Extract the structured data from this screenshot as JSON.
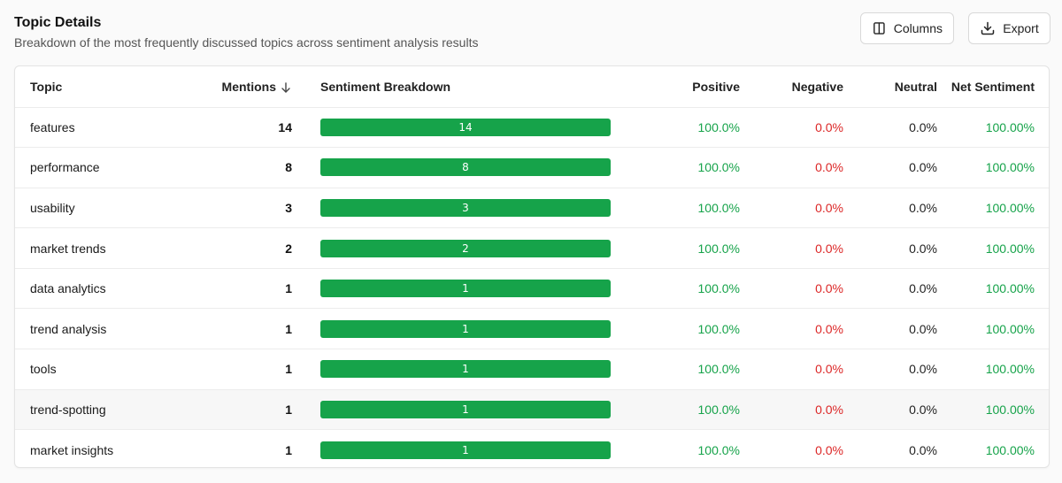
{
  "header": {
    "title": "Topic Details",
    "subtitle": "Breakdown of the most frequently discussed topics across sentiment analysis results"
  },
  "toolbar": {
    "columns_label": "Columns",
    "export_label": "Export"
  },
  "table": {
    "columns": {
      "topic": "Topic",
      "mentions": "Mentions",
      "breakdown": "Sentiment Breakdown",
      "positive": "Positive",
      "negative": "Negative",
      "neutral": "Neutral",
      "net": "Net Sentiment"
    },
    "rows": [
      {
        "topic": "features",
        "mentions": "14",
        "bar": "14",
        "positive": "100.0%",
        "negative": "0.0%",
        "neutral": "0.0%",
        "net": "100.00%"
      },
      {
        "topic": "performance",
        "mentions": "8",
        "bar": "8",
        "positive": "100.0%",
        "negative": "0.0%",
        "neutral": "0.0%",
        "net": "100.00%"
      },
      {
        "topic": "usability",
        "mentions": "3",
        "bar": "3",
        "positive": "100.0%",
        "negative": "0.0%",
        "neutral": "0.0%",
        "net": "100.00%"
      },
      {
        "topic": "market trends",
        "mentions": "2",
        "bar": "2",
        "positive": "100.0%",
        "negative": "0.0%",
        "neutral": "0.0%",
        "net": "100.00%"
      },
      {
        "topic": "data analytics",
        "mentions": "1",
        "bar": "1",
        "positive": "100.0%",
        "negative": "0.0%",
        "neutral": "0.0%",
        "net": "100.00%"
      },
      {
        "topic": "trend analysis",
        "mentions": "1",
        "bar": "1",
        "positive": "100.0%",
        "negative": "0.0%",
        "neutral": "0.0%",
        "net": "100.00%"
      },
      {
        "topic": "tools",
        "mentions": "1",
        "bar": "1",
        "positive": "100.0%",
        "negative": "0.0%",
        "neutral": "0.0%",
        "net": "100.00%"
      },
      {
        "topic": "trend-spotting",
        "mentions": "1",
        "bar": "1",
        "positive": "100.0%",
        "negative": "0.0%",
        "neutral": "0.0%",
        "net": "100.00%"
      },
      {
        "topic": "market insights",
        "mentions": "1",
        "bar": "1",
        "positive": "100.0%",
        "negative": "0.0%",
        "neutral": "0.0%",
        "net": "100.00%"
      }
    ]
  },
  "colors": {
    "positive": "#16a34a",
    "negative": "#dc2626",
    "bar": "#16a34a"
  },
  "icons": {
    "columns": "columns-icon",
    "export": "download-icon",
    "sort": "arrow-down-icon"
  }
}
